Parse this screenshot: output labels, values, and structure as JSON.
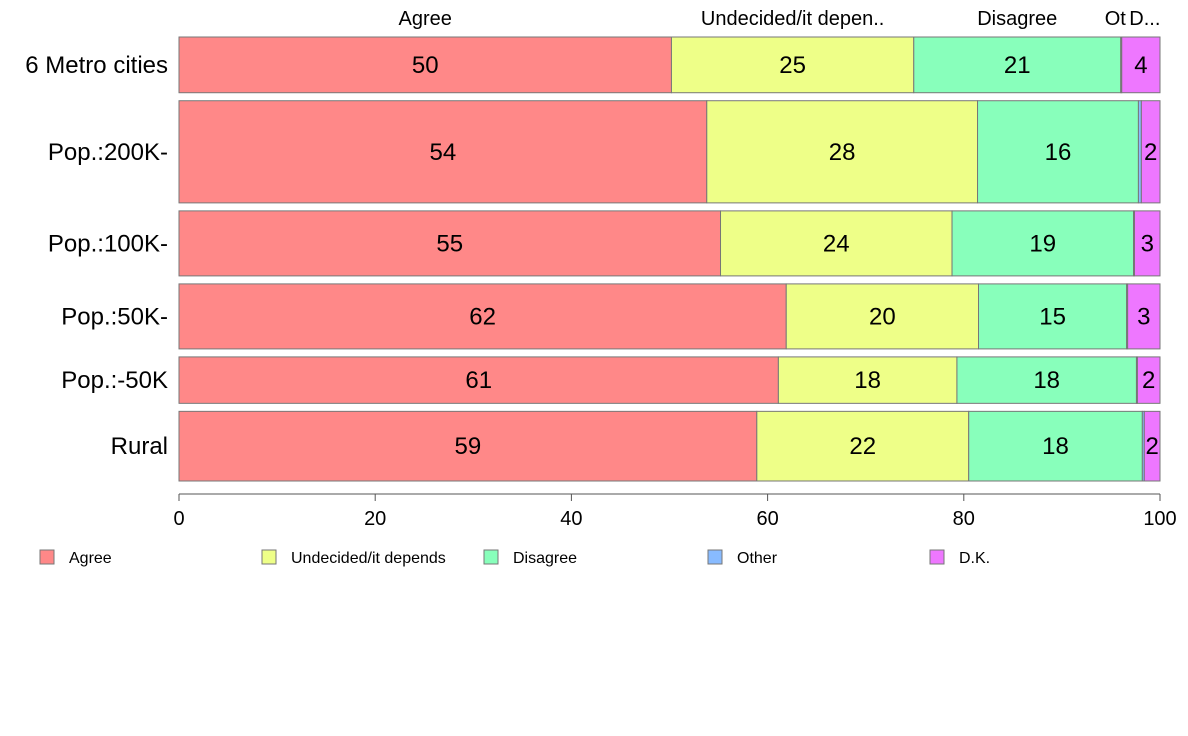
{
  "chart_data": {
    "type": "bar",
    "orientation": "horizontal",
    "stacked": true,
    "categories": [
      "6 Metro cities",
      "Pop.:200K-",
      "Pop.:100K-",
      "Pop.:50K-",
      "Pop.:-50K",
      "Rural"
    ],
    "series": [
      {
        "name": "Agree",
        "color": "#ff8888",
        "values": [
          50.2,
          53.8,
          55.2,
          61.9,
          61.1,
          58.9
        ]
      },
      {
        "name": "Undecided/it depends",
        "color": "#eeff88",
        "values": [
          24.7,
          27.6,
          23.6,
          19.6,
          18.2,
          21.6
        ]
      },
      {
        "name": "Disagree",
        "color": "#88ffbb",
        "values": [
          21.1,
          16.4,
          18.5,
          15.1,
          18.3,
          17.7
        ]
      },
      {
        "name": "Other",
        "color": "#88bbff",
        "values": [
          0.1,
          0.3,
          0.1,
          0.1,
          0.1,
          0.2
        ]
      },
      {
        "name": "D.K.",
        "color": "#ee77ff",
        "values": [
          3.9,
          1.9,
          2.6,
          3.3,
          2.3,
          1.6
        ]
      }
    ],
    "segment_labels": [
      [
        "50",
        "25",
        "21",
        "",
        "4"
      ],
      [
        "54",
        "28",
        "16",
        "",
        "2"
      ],
      [
        "55",
        "24",
        "19",
        "",
        "3"
      ],
      [
        "62",
        "20",
        "15",
        "",
        "3"
      ],
      [
        "61",
        "18",
        "18",
        "",
        "2"
      ],
      [
        "59",
        "22",
        "18",
        "",
        "2"
      ]
    ],
    "bar_weights": [
      6,
      11,
      7,
      7,
      5,
      7.5
    ],
    "top_labels": [
      "Agree",
      "Undecided/it depen..",
      "Disagree",
      "Ot",
      "D..."
    ],
    "xlim": [
      0,
      100
    ],
    "xticks": [
      "0",
      "20",
      "40",
      "60",
      "80",
      "100"
    ],
    "legend": [
      "Agree",
      "Undecided/it depends",
      "Disagree",
      "Other",
      "D.K."
    ],
    "legend_position": "bottom",
    "grid": false
  }
}
